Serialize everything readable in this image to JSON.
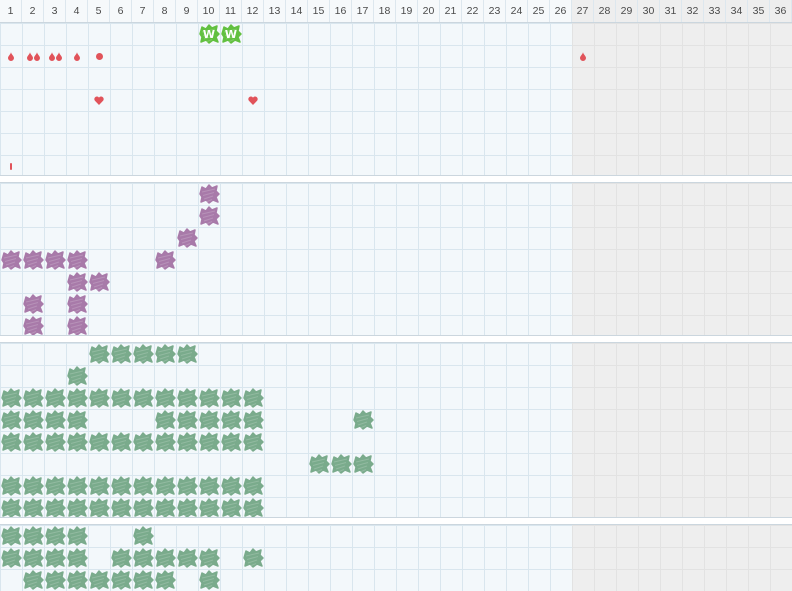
{
  "header": {
    "columns": [
      "1",
      "2",
      "3",
      "4",
      "5",
      "6",
      "7",
      "8",
      "9",
      "10",
      "11",
      "12",
      "13",
      "14",
      "15",
      "16",
      "17",
      "18",
      "19",
      "20",
      "21",
      "22",
      "23",
      "24",
      "25",
      "26",
      "27",
      "28",
      "29",
      "30",
      "31",
      "32",
      "33",
      "34",
      "35",
      "36"
    ],
    "enabled_columns": 26
  },
  "colors": {
    "purple_scribble": "#a87aa9",
    "green_scribble": "#7aab8c",
    "bright_green_badge": "#62c040",
    "red_marker": "#e1535a"
  },
  "rows": [
    {
      "section": 0,
      "row": 0,
      "cells": {
        "10": "w-badge",
        "11": "w-badge"
      }
    },
    {
      "section": 0,
      "row": 1,
      "cells": {
        "1": "drop",
        "2": "drop-pair",
        "3": "drop-pair",
        "4": "drop",
        "5": "dot",
        "27": "drop"
      }
    },
    {
      "section": 0,
      "row": 3,
      "cells": {
        "5": "heart",
        "12": "heart"
      }
    },
    {
      "section": 0,
      "row": 6,
      "cells": {
        "1": "tick"
      }
    },
    {
      "section": 1,
      "row": 0,
      "cells": {
        "10": "purple"
      }
    },
    {
      "section": 1,
      "row": 1,
      "cells": {
        "10": "purple"
      }
    },
    {
      "section": 1,
      "row": 2,
      "cells": {
        "9": "purple"
      }
    },
    {
      "section": 1,
      "row": 3,
      "cells": {
        "1": "purple",
        "2": "purple",
        "3": "purple",
        "4": "purple",
        "8": "purple"
      }
    },
    {
      "section": 1,
      "row": 4,
      "cells": {
        "4": "purple",
        "5": "purple"
      }
    },
    {
      "section": 1,
      "row": 5,
      "cells": {
        "2": "purple",
        "4": "purple"
      }
    },
    {
      "section": 1,
      "row": 6,
      "cells": {
        "2": "purple",
        "4": "purple"
      }
    },
    {
      "section": 2,
      "row": 0,
      "cells": {
        "5": "green",
        "6": "green",
        "7": "green",
        "8": "green",
        "9": "green"
      }
    },
    {
      "section": 2,
      "row": 1,
      "cells": {
        "4": "green"
      }
    },
    {
      "section": 2,
      "row": 2,
      "cells": {
        "1": "green",
        "2": "green",
        "3": "green",
        "4": "green",
        "5": "green",
        "6": "green",
        "7": "green",
        "8": "green",
        "9": "green",
        "10": "green",
        "11": "green",
        "12": "green"
      }
    },
    {
      "section": 2,
      "row": 3,
      "cells": {
        "1": "green",
        "2": "green",
        "3": "green",
        "4": "green",
        "8": "green",
        "9": "green",
        "10": "green",
        "11": "green",
        "12": "green",
        "17": "green"
      }
    },
    {
      "section": 2,
      "row": 4,
      "cells": {
        "1": "green",
        "2": "green",
        "3": "green",
        "4": "green",
        "5": "green",
        "6": "green",
        "7": "green",
        "8": "green",
        "9": "green",
        "10": "green",
        "11": "green",
        "12": "green"
      }
    },
    {
      "section": 2,
      "row": 5,
      "cells": {
        "15": "green",
        "16": "green",
        "17": "green"
      }
    },
    {
      "section": 2,
      "row": 6,
      "cells": {
        "1": "green",
        "2": "green",
        "3": "green",
        "4": "green",
        "5": "green",
        "6": "green",
        "7": "green",
        "8": "green",
        "9": "green",
        "10": "green",
        "11": "green",
        "12": "green"
      }
    },
    {
      "section": 2,
      "row": 7,
      "cells": {
        "1": "green",
        "2": "green",
        "3": "green",
        "4": "green",
        "5": "green",
        "6": "green",
        "7": "green",
        "8": "green",
        "9": "green",
        "10": "green",
        "11": "green",
        "12": "green"
      }
    },
    {
      "section": 3,
      "row": 0,
      "cells": {
        "1": "green",
        "2": "green",
        "3": "green",
        "4": "green",
        "7": "green"
      }
    },
    {
      "section": 3,
      "row": 1,
      "cells": {
        "1": "green",
        "2": "green",
        "3": "green",
        "4": "green",
        "6": "green",
        "7": "green",
        "8": "green",
        "9": "green",
        "10": "green",
        "12": "green"
      }
    },
    {
      "section": 3,
      "row": 2,
      "cells": {
        "2": "green",
        "3": "green",
        "4": "green",
        "5": "green",
        "6": "green",
        "7": "green",
        "8": "green",
        "10": "green"
      }
    }
  ],
  "badge_letter": "W"
}
